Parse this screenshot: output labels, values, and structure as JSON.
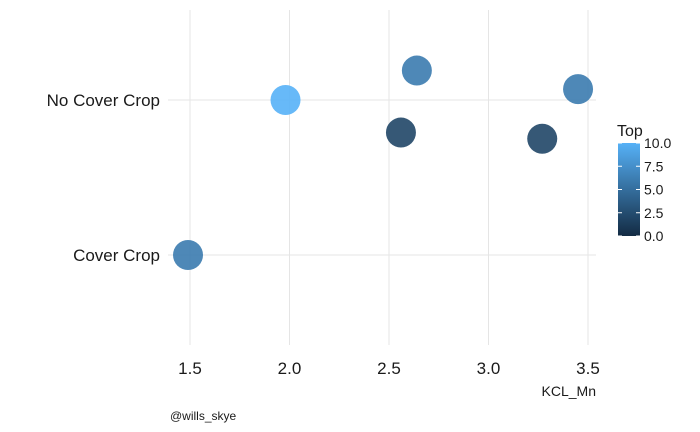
{
  "chart_data": {
    "type": "scatter",
    "x_label": "KCL_Mn",
    "x_ticks": [
      "1.5",
      "2.0",
      "2.5",
      "3.0",
      "3.5"
    ],
    "xlim": [
      1.5,
      3.5
    ],
    "categories": [
      "Cover Crop",
      "No Cover Crop"
    ],
    "points": [
      {
        "x": 1.49,
        "category": "Cover Crop",
        "jitter": 0.0,
        "top": 6
      },
      {
        "x": 1.98,
        "category": "No Cover Crop",
        "jitter": 0.0,
        "top": 10
      },
      {
        "x": 2.64,
        "category": "No Cover Crop",
        "jitter": 0.19,
        "top": 6
      },
      {
        "x": 3.45,
        "category": "No Cover Crop",
        "jitter": 0.07,
        "top": 6
      },
      {
        "x": 2.56,
        "category": "No Cover Crop",
        "jitter": -0.21,
        "top": 2
      },
      {
        "x": 3.27,
        "category": "No Cover Crop",
        "jitter": -0.25,
        "top": 2
      }
    ],
    "color_legend": {
      "title": "Top",
      "ticks": [
        "0.0",
        "2.5",
        "5.0",
        "7.5",
        "10.0"
      ],
      "range": [
        0,
        10
      ],
      "low_color": "#132b43",
      "high_color": "#56b1f7"
    },
    "grid": true
  },
  "caption": "@wills_skye"
}
